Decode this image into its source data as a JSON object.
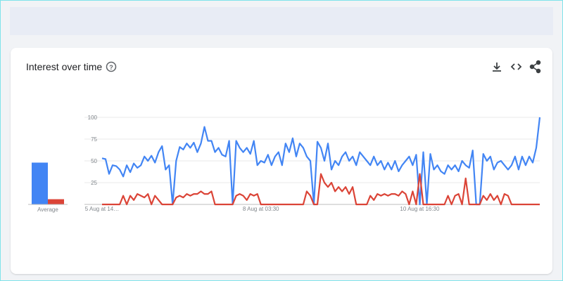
{
  "header": {
    "title": "Interest over time"
  },
  "chart_data": {
    "type": "line",
    "categories": [
      "5 Aug at 14…",
      null,
      null,
      null,
      null,
      null,
      null,
      null,
      null,
      null,
      null,
      null,
      null,
      null,
      null,
      null,
      null,
      null,
      null,
      null,
      null,
      null,
      null,
      null,
      null,
      null,
      null,
      null,
      null,
      null,
      null,
      null,
      null,
      null,
      null,
      null,
      null,
      null,
      null,
      null,
      null,
      null,
      null,
      null,
      null,
      "8 Aug at 03:30",
      null,
      null,
      null,
      null,
      null,
      null,
      null,
      null,
      null,
      null,
      null,
      null,
      null,
      null,
      null,
      null,
      null,
      null,
      null,
      null,
      null,
      null,
      null,
      null,
      null,
      null,
      null,
      null,
      null,
      null,
      null,
      null,
      null,
      null,
      null,
      null,
      null,
      null,
      null,
      null,
      null,
      null,
      null,
      null,
      "10 Aug at 16:30",
      null,
      null,
      null,
      null,
      null,
      null,
      null,
      null,
      null,
      null,
      null,
      null,
      null,
      null,
      null,
      null,
      null,
      null,
      null,
      null,
      null,
      null,
      null,
      null,
      null,
      null,
      null,
      null,
      null,
      null,
      null,
      null,
      null,
      null
    ],
    "series": [
      {
        "color": "#4285f4",
        "values": [
          53,
          52,
          35,
          45,
          44,
          40,
          32,
          45,
          37,
          47,
          42,
          45,
          55,
          50,
          56,
          48,
          60,
          67,
          40,
          45,
          0,
          50,
          66,
          63,
          70,
          65,
          71,
          60,
          70,
          89,
          73,
          73,
          60,
          65,
          57,
          55,
          73,
          0,
          73,
          65,
          60,
          65,
          58,
          73,
          45,
          50,
          48,
          57,
          45,
          55,
          60,
          45,
          70,
          60,
          76,
          55,
          70,
          65,
          55,
          50,
          0,
          72,
          65,
          50,
          70,
          40,
          50,
          45,
          55,
          60,
          50,
          55,
          45,
          60,
          55,
          50,
          45,
          55,
          45,
          50,
          40,
          48,
          40,
          50,
          38,
          45,
          50,
          55,
          45,
          57,
          0,
          60,
          0,
          58,
          40,
          45,
          38,
          35,
          45,
          40,
          45,
          38,
          50,
          45,
          42,
          62,
          0,
          0,
          58,
          50,
          55,
          40,
          48,
          50,
          45,
          40,
          45,
          55,
          40,
          55,
          45,
          55,
          48,
          65,
          100
        ]
      },
      {
        "color": "#db4437",
        "values": [
          0,
          0,
          0,
          0,
          0,
          0,
          10,
          0,
          10,
          5,
          12,
          10,
          8,
          12,
          0,
          10,
          5,
          0,
          0,
          0,
          0,
          8,
          10,
          8,
          12,
          10,
          12,
          12,
          15,
          12,
          12,
          15,
          0,
          0,
          0,
          0,
          0,
          0,
          10,
          12,
          10,
          5,
          12,
          10,
          12,
          0,
          0,
          0,
          0,
          0,
          0,
          0,
          0,
          0,
          0,
          0,
          0,
          0,
          15,
          10,
          0,
          0,
          35,
          25,
          20,
          25,
          15,
          20,
          15,
          20,
          12,
          20,
          0,
          0,
          0,
          0,
          10,
          5,
          12,
          10,
          12,
          10,
          12,
          12,
          10,
          15,
          12,
          0,
          15,
          0,
          35,
          0,
          0,
          0,
          0,
          0,
          0,
          0,
          10,
          0,
          10,
          12,
          0,
          30,
          0,
          0,
          0,
          0,
          10,
          5,
          12,
          5,
          10,
          0,
          12,
          10,
          0,
          0,
          0,
          0,
          0,
          0,
          0,
          0,
          0
        ]
      }
    ],
    "averages": {
      "label": "Average",
      "values": [
        48,
        6
      ]
    },
    "ylim": [
      0,
      100
    ],
    "yticks": [
      0,
      25,
      50,
      75,
      100
    ],
    "grid": true
  }
}
